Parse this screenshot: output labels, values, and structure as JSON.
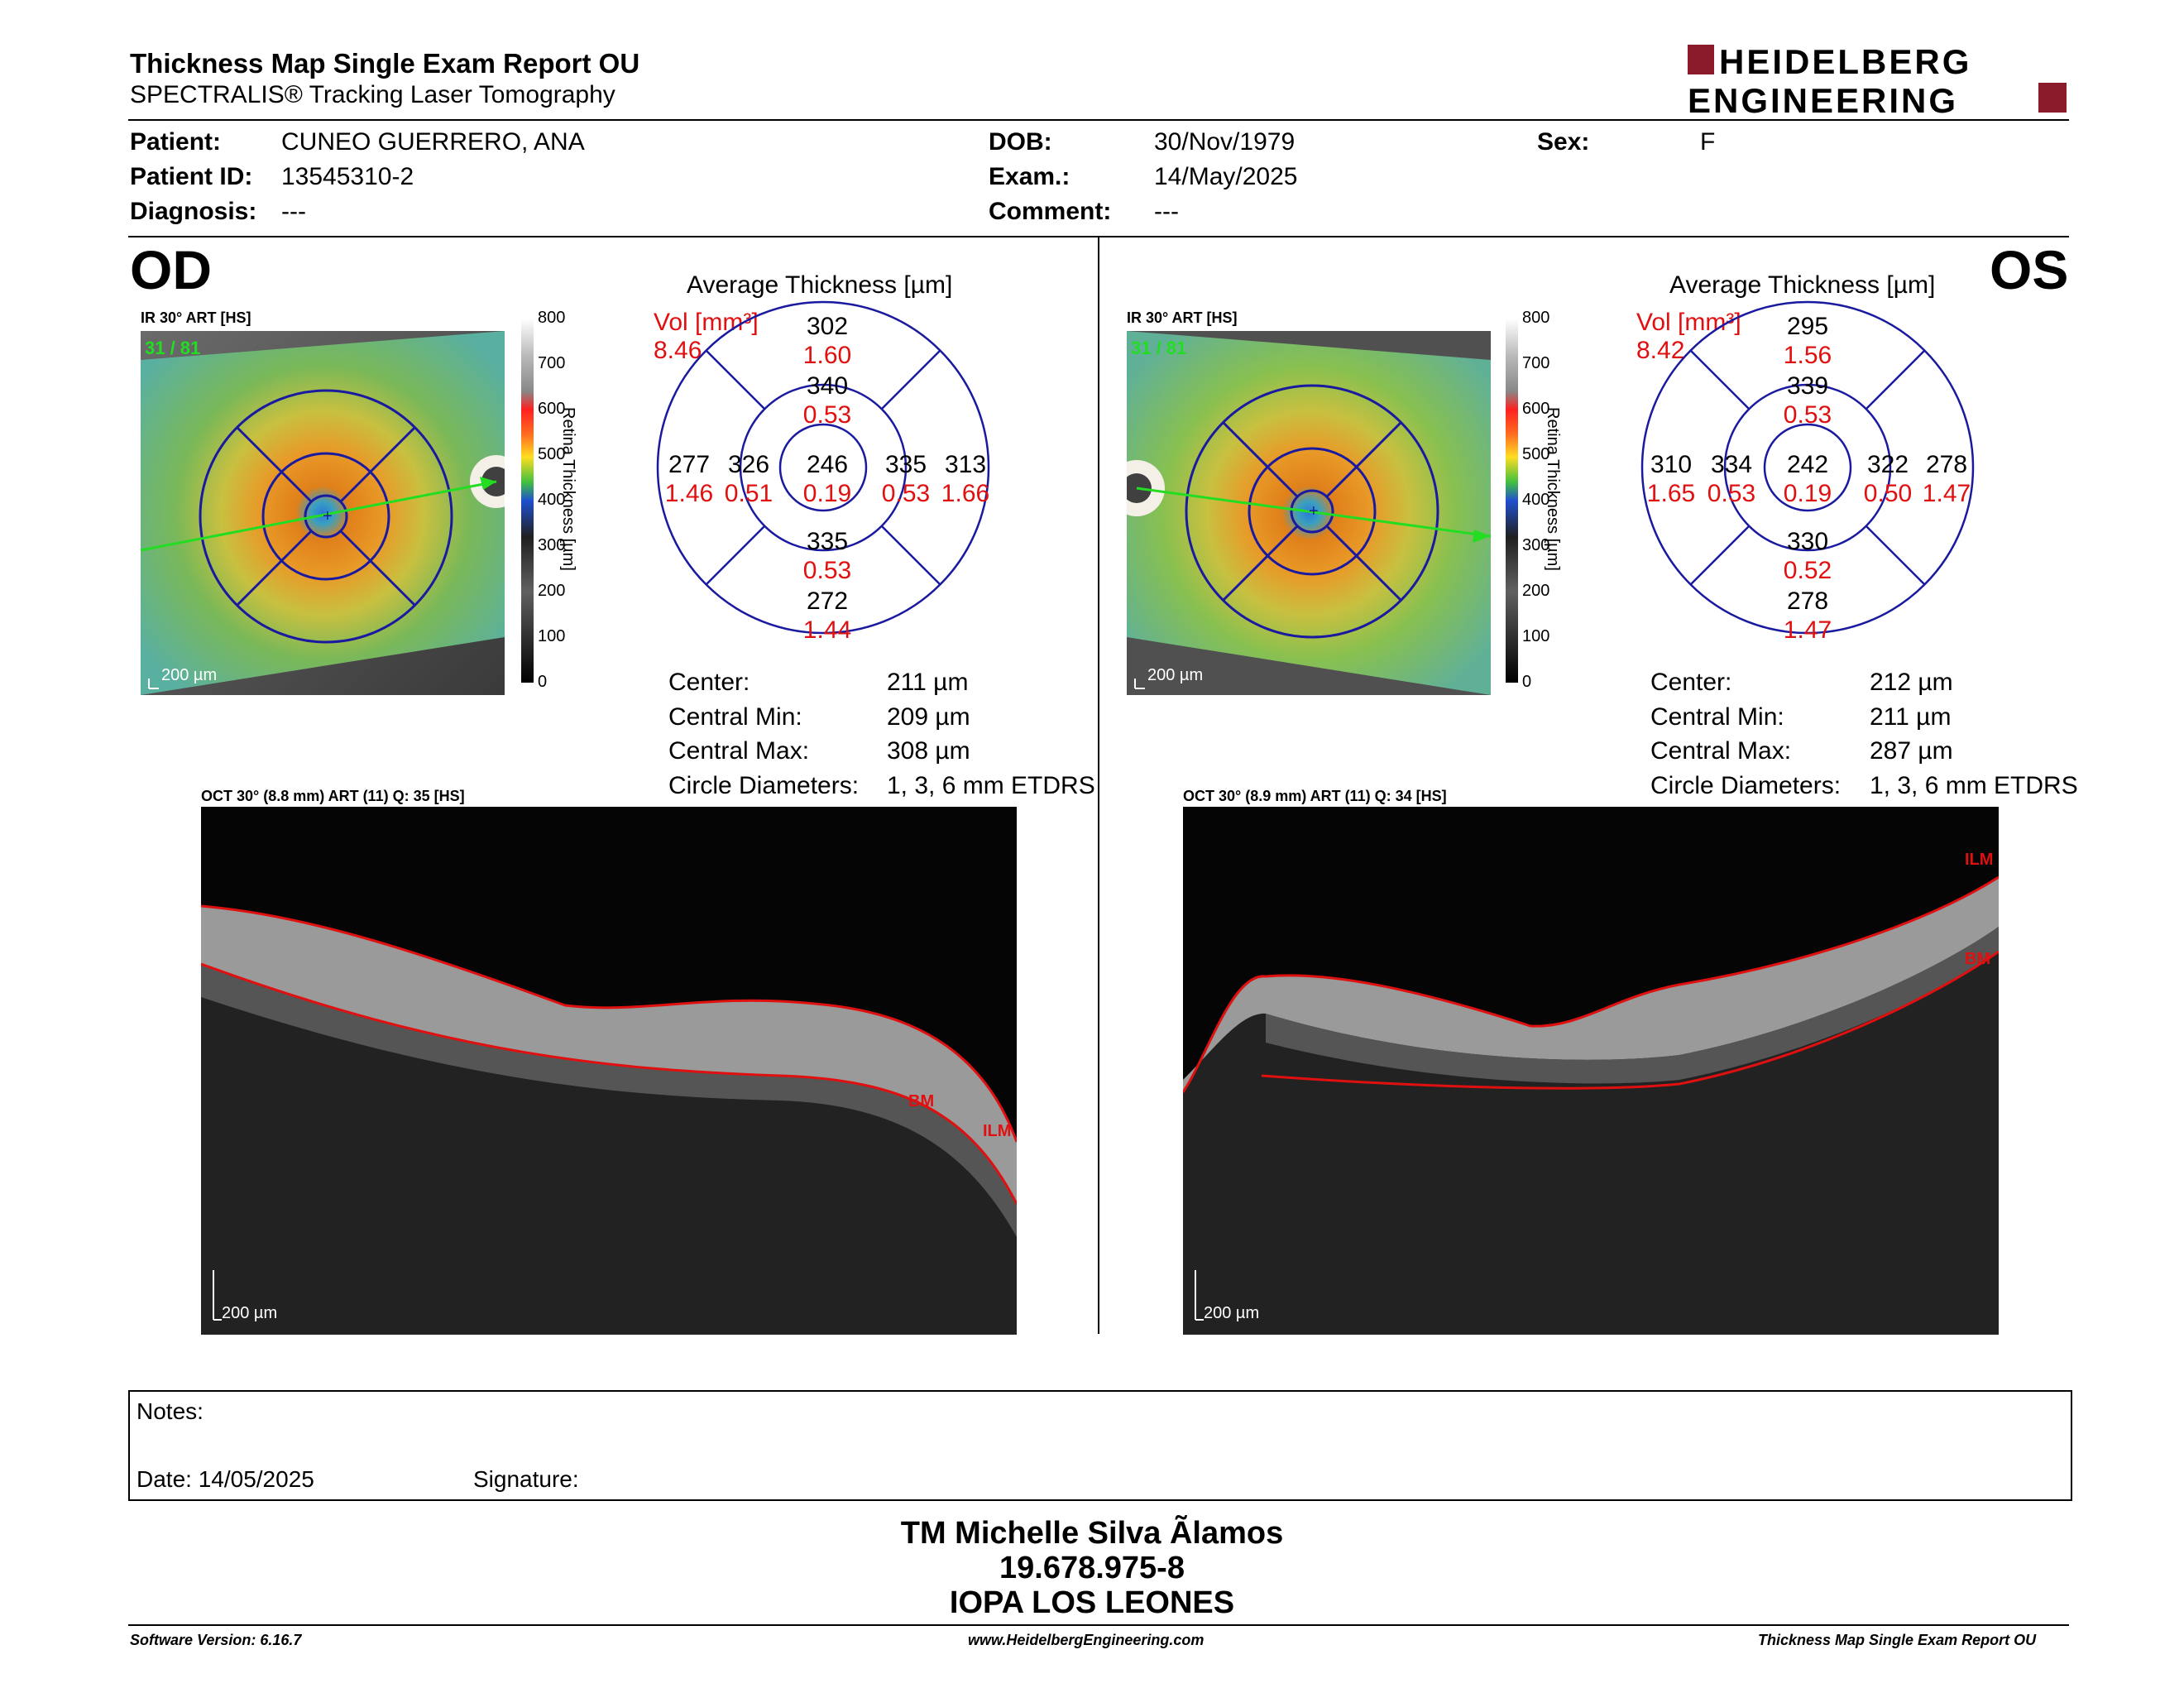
{
  "header": {
    "title": "Thickness Map Single Exam Report OU",
    "subtitle": "SPECTRALIS® Tracking Laser Tomography",
    "logo_line1": "HEIDELBERG",
    "logo_line2": "ENGINEERING"
  },
  "patient": {
    "patient_label": "Patient:",
    "patient_value": "CUNEO GUERRERO, ANA",
    "id_label": "Patient ID:",
    "id_value": "13545310-2",
    "diag_label": "Diagnosis:",
    "diag_value": "---",
    "dob_label": "DOB:",
    "dob_value": "30/Nov/1979",
    "exam_label": "Exam.:",
    "exam_value": "14/May/2025",
    "comment_label": "Comment:",
    "comment_value": "---",
    "sex_label": "Sex:",
    "sex_value": "F"
  },
  "od": {
    "eye": "OD",
    "ir_label": "IR 30° ART [HS]",
    "art_count": "31 / 81",
    "scale": "200 µm",
    "colorbar_ticks": [
      "800",
      "700",
      "600",
      "500",
      "400",
      "300",
      "200",
      "100",
      "0"
    ],
    "colorbar_title": "Retina Thickness [µm]",
    "avg_title": "Average Thickness [µm]",
    "vol_label": "Vol [mm³]",
    "vol_value": "8.46",
    "sectors": {
      "sup_outer_t": "302",
      "sup_outer_v": "1.60",
      "sup_inner_t": "340",
      "sup_inner_v": "0.53",
      "temp_outer_t": "277",
      "temp_outer_v": "1.46",
      "temp_inner_t": "326",
      "temp_inner_v": "0.51",
      "center_t": "246",
      "center_v": "0.19",
      "nas_inner_t": "335",
      "nas_inner_v": "0.53",
      "nas_outer_t": "313",
      "nas_outer_v": "1.66",
      "inf_inner_t": "335",
      "inf_inner_v": "0.53",
      "inf_outer_t": "272",
      "inf_outer_v": "1.44"
    },
    "stats": {
      "center_label": "Center:",
      "center_value": "211 µm",
      "min_label": "Central Min:",
      "min_value": "209 µm",
      "max_label": "Central Max:",
      "max_value": "308 µm",
      "circ_label": "Circle Diameters:",
      "circ_value": "1, 3, 6 mm ETDRS"
    },
    "oct_label": "OCT 30° (8.8 mm) ART (11) Q: 35 [HS]",
    "oct_scale": "200 µm",
    "bm": "BM",
    "ilm": "ILM"
  },
  "os": {
    "eye": "OS",
    "ir_label": "IR 30° ART [HS]",
    "art_count": "31 / 81",
    "scale": "200 µm",
    "colorbar_ticks": [
      "800",
      "700",
      "600",
      "500",
      "400",
      "300",
      "200",
      "100",
      "0"
    ],
    "colorbar_title": "Retina Thickness [µm]",
    "avg_title": "Average Thickness [µm]",
    "vol_label": "Vol [mm³]",
    "vol_value": "8.42",
    "sectors": {
      "sup_outer_t": "295",
      "sup_outer_v": "1.56",
      "sup_inner_t": "339",
      "sup_inner_v": "0.53",
      "temp_outer_t": "310",
      "temp_outer_v": "1.65",
      "temp_inner_t": "334",
      "temp_inner_v": "0.53",
      "center_t": "242",
      "center_v": "0.19",
      "nas_inner_t": "322",
      "nas_inner_v": "0.50",
      "nas_outer_t": "278",
      "nas_outer_v": "1.47",
      "inf_inner_t": "330",
      "inf_inner_v": "0.52",
      "inf_outer_t": "278",
      "inf_outer_v": "1.47"
    },
    "stats": {
      "center_label": "Center:",
      "center_value": "212 µm",
      "min_label": "Central Min:",
      "min_value": "211 µm",
      "max_label": "Central Max:",
      "max_value": "287 µm",
      "circ_label": "Circle Diameters:",
      "circ_value": "1, 3, 6 mm ETDRS"
    },
    "oct_label": "OCT 30° (8.9 mm) ART (11) Q: 34 [HS]",
    "oct_scale": "200 µm",
    "ilm": "ILM",
    "bm": "BM"
  },
  "notes": {
    "notes_label": "Notes:",
    "date_label": "Date: 14/05/2025",
    "signature_label": "Signature:"
  },
  "signer": {
    "name": "TM Michelle Silva Ãlamos",
    "rut": "19.678.975-8",
    "place": "IOPA LOS LEONES"
  },
  "footer": {
    "version": "Software Version: 6.16.7",
    "website": "www.HeidelbergEngineering.com",
    "report": "Thickness Map Single Exam Report OU"
  },
  "colors": {
    "navy": "#1a1aa0",
    "red": "#e01010",
    "logo_red": "#8b1a2a"
  }
}
